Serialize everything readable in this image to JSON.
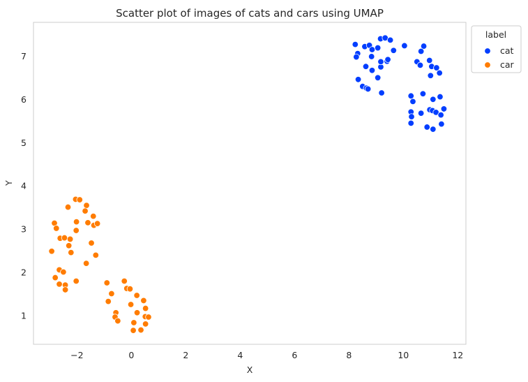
{
  "chart_data": {
    "type": "scatter",
    "title": "Scatter plot of images of cats and cars using UMAP",
    "xlabel": "X",
    "ylabel": "Y",
    "xlim": [
      -3.6,
      12.3
    ],
    "ylim": [
      0.34,
      7.78
    ],
    "xticks": [
      -2,
      0,
      2,
      4,
      6,
      8,
      10,
      12
    ],
    "yticks": [
      1,
      2,
      3,
      4,
      5,
      6,
      7
    ],
    "xtick_labels": [
      "−2",
      "0",
      "2",
      "4",
      "6",
      "8",
      "10",
      "12"
    ],
    "ytick_labels": [
      "1",
      "2",
      "3",
      "4",
      "5",
      "6",
      "7"
    ],
    "grid": false,
    "legend": {
      "title": "label",
      "placement": "outside-top-right"
    },
    "series": [
      {
        "name": "cat",
        "color": "#023eff",
        "points": [
          [
            8.23,
            7.27
          ],
          [
            8.32,
            7.06
          ],
          [
            8.27,
            6.98
          ],
          [
            8.58,
            7.22
          ],
          [
            8.75,
            7.25
          ],
          [
            8.85,
            7.15
          ],
          [
            9.06,
            7.19
          ],
          [
            9.16,
            7.4
          ],
          [
            9.33,
            7.42
          ],
          [
            9.52,
            7.37
          ],
          [
            9.64,
            7.13
          ],
          [
            10.04,
            7.24
          ],
          [
            8.83,
            6.99
          ],
          [
            8.62,
            6.76
          ],
          [
            8.85,
            6.67
          ],
          [
            9.06,
            6.5
          ],
          [
            9.17,
            6.75
          ],
          [
            9.17,
            6.87
          ],
          [
            9.4,
            6.88
          ],
          [
            9.43,
            6.92
          ],
          [
            8.34,
            6.46
          ],
          [
            8.5,
            6.3
          ],
          [
            8.64,
            6.26
          ],
          [
            8.7,
            6.24
          ],
          [
            9.2,
            6.15
          ],
          [
            10.75,
            7.23
          ],
          [
            10.65,
            7.11
          ],
          [
            10.96,
            6.9
          ],
          [
            10.5,
            6.87
          ],
          [
            10.62,
            6.79
          ],
          [
            11.04,
            6.76
          ],
          [
            11.22,
            6.73
          ],
          [
            11.0,
            6.55
          ],
          [
            11.33,
            6.61
          ],
          [
            10.28,
            6.08
          ],
          [
            10.35,
            5.95
          ],
          [
            10.72,
            6.13
          ],
          [
            11.09,
            6.0
          ],
          [
            11.35,
            6.06
          ],
          [
            10.28,
            5.71
          ],
          [
            10.3,
            5.6
          ],
          [
            10.65,
            5.68
          ],
          [
            10.97,
            5.76
          ],
          [
            11.07,
            5.74
          ],
          [
            11.2,
            5.7
          ],
          [
            11.38,
            5.64
          ],
          [
            11.49,
            5.78
          ],
          [
            10.28,
            5.45
          ],
          [
            10.87,
            5.36
          ],
          [
            11.09,
            5.31
          ],
          [
            11.4,
            5.43
          ]
        ]
      },
      {
        "name": "car",
        "color": "#ff7c00",
        "points": [
          [
            -2.05,
            3.69
          ],
          [
            -1.9,
            3.68
          ],
          [
            -1.65,
            3.55
          ],
          [
            -2.33,
            3.51
          ],
          [
            -1.7,
            3.42
          ],
          [
            -1.4,
            3.3
          ],
          [
            -2.83,
            3.14
          ],
          [
            -2.02,
            3.17
          ],
          [
            -1.6,
            3.15
          ],
          [
            -1.38,
            3.09
          ],
          [
            -1.25,
            3.13
          ],
          [
            -2.76,
            3.02
          ],
          [
            -2.03,
            2.97
          ],
          [
            -2.62,
            2.79
          ],
          [
            -2.46,
            2.8
          ],
          [
            -2.25,
            2.77
          ],
          [
            -2.3,
            2.62
          ],
          [
            -1.47,
            2.68
          ],
          [
            -2.93,
            2.49
          ],
          [
            -2.22,
            2.46
          ],
          [
            -1.31,
            2.4
          ],
          [
            -1.66,
            2.21
          ],
          [
            -2.65,
            2.06
          ],
          [
            -2.5,
            2.01
          ],
          [
            -2.8,
            1.88
          ],
          [
            -2.03,
            1.8
          ],
          [
            -2.65,
            1.73
          ],
          [
            -2.43,
            1.71
          ],
          [
            -2.43,
            1.6
          ],
          [
            -0.9,
            1.76
          ],
          [
            -0.26,
            1.8
          ],
          [
            -0.17,
            1.63
          ],
          [
            -0.05,
            1.62
          ],
          [
            -0.73,
            1.51
          ],
          [
            0.2,
            1.47
          ],
          [
            0.45,
            1.35
          ],
          [
            -0.85,
            1.33
          ],
          [
            -0.02,
            1.26
          ],
          [
            0.52,
            1.17
          ],
          [
            -0.57,
            1.07
          ],
          [
            0.21,
            1.07
          ],
          [
            -0.6,
            0.97
          ],
          [
            0.51,
            0.98
          ],
          [
            0.63,
            0.97
          ],
          [
            -0.5,
            0.88
          ],
          [
            0.09,
            0.84
          ],
          [
            0.52,
            0.81
          ],
          [
            0.07,
            0.66
          ],
          [
            0.35,
            0.67
          ]
        ]
      }
    ]
  }
}
